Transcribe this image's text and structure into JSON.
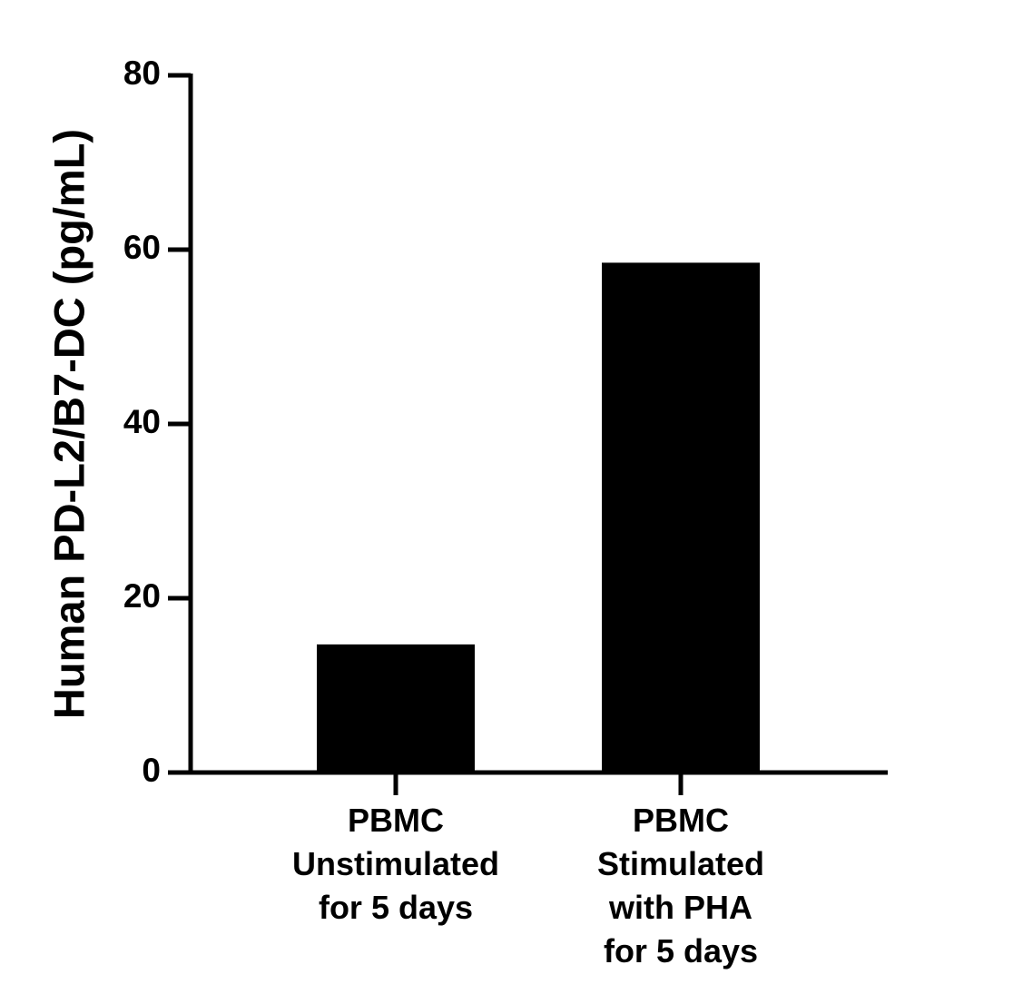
{
  "chart_data": {
    "type": "bar",
    "y_label": "Human PD-L2/B7-DC (pg/mL)",
    "categories": [
      [
        "PBMC",
        "Unstimulated",
        "for 5 days"
      ],
      [
        "PBMC",
        "Stimulated",
        "with PHA",
        "for 5 days"
      ]
    ],
    "values": [
      14.7,
      58.5
    ],
    "color": "#000000",
    "ylim": [
      0,
      80
    ],
    "yticks": [
      0,
      20,
      40,
      60,
      80
    ],
    "grid": false
  }
}
